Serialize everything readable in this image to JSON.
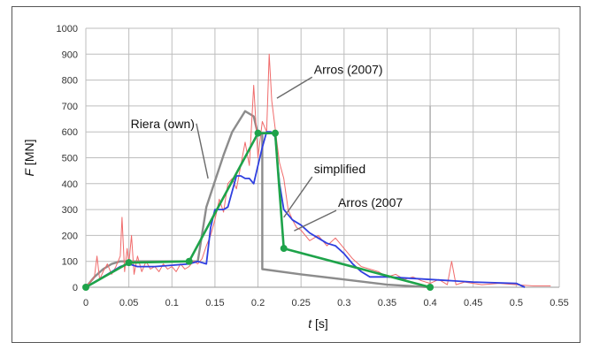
{
  "chart_data": {
    "type": "line",
    "title": "",
    "xlabel": {
      "italic": "t",
      "unit": " [s]"
    },
    "ylabel": {
      "italic": "F",
      "unit": " [MN]"
    },
    "xlim": [
      0,
      0.55
    ],
    "ylim": [
      0,
      1000
    ],
    "grid": true,
    "xticks": [
      "0",
      "0.05",
      "0.1",
      "0.15",
      "0.2",
      "0.25",
      "0.3",
      "0.35",
      "0.4",
      "0.45",
      "0.5",
      "0.55"
    ],
    "yticks": [
      "0",
      "100",
      "200",
      "300",
      "400",
      "500",
      "600",
      "700",
      "800",
      "900",
      "1000"
    ],
    "series": [
      {
        "key": "riera",
        "color": "#8c8c8c",
        "x": [
          0,
          0.01,
          0.02,
          0.03,
          0.04,
          0.05,
          0.07,
          0.09,
          0.11,
          0.13,
          0.14,
          0.15,
          0.16,
          0.17,
          0.185,
          0.195,
          0.2,
          0.205,
          0.205,
          0.25,
          0.3,
          0.35,
          0.4
        ],
        "y": [
          0,
          40,
          70,
          90,
          100,
          100,
          100,
          100,
          100,
          100,
          310,
          410,
          510,
          600,
          680,
          660,
          590,
          590,
          70,
          50,
          30,
          10,
          0
        ]
      },
      {
        "key": "arros-red",
        "color": "#f06b6b",
        "x": [
          0,
          0.005,
          0.01,
          0.013,
          0.016,
          0.02,
          0.025,
          0.03,
          0.035,
          0.04,
          0.042,
          0.045,
          0.048,
          0.05,
          0.053,
          0.056,
          0.06,
          0.065,
          0.07,
          0.075,
          0.08,
          0.085,
          0.09,
          0.095,
          0.1,
          0.105,
          0.11,
          0.115,
          0.12,
          0.125,
          0.13,
          0.135,
          0.14,
          0.145,
          0.15,
          0.155,
          0.16,
          0.165,
          0.17,
          0.175,
          0.18,
          0.185,
          0.19,
          0.195,
          0.2,
          0.205,
          0.21,
          0.213,
          0.216,
          0.219,
          0.222,
          0.225,
          0.23,
          0.235,
          0.24,
          0.245,
          0.25,
          0.26,
          0.27,
          0.28,
          0.29,
          0.3,
          0.31,
          0.32,
          0.33,
          0.34,
          0.35,
          0.36,
          0.37,
          0.38,
          0.39,
          0.4,
          0.41,
          0.42,
          0.425,
          0.43,
          0.44,
          0.46,
          0.48,
          0.5,
          0.52,
          0.54
        ],
        "y": [
          0,
          20,
          40,
          120,
          30,
          60,
          90,
          50,
          80,
          120,
          270,
          60,
          150,
          90,
          200,
          50,
          120,
          60,
          100,
          70,
          80,
          60,
          90,
          70,
          80,
          60,
          90,
          70,
          80,
          100,
          90,
          110,
          160,
          200,
          260,
          340,
          290,
          400,
          420,
          380,
          470,
          560,
          470,
          780,
          500,
          640,
          600,
          900,
          720,
          640,
          560,
          480,
          420,
          300,
          260,
          230,
          220,
          180,
          200,
          160,
          190,
          150,
          110,
          80,
          70,
          60,
          40,
          50,
          30,
          40,
          25,
          15,
          30,
          10,
          100,
          10,
          20,
          10,
          15,
          10,
          5,
          5
        ]
      },
      {
        "key": "arros-blue",
        "color": "#2f3fe0",
        "x": [
          0,
          0.02,
          0.04,
          0.05,
          0.06,
          0.08,
          0.1,
          0.12,
          0.13,
          0.14,
          0.145,
          0.15,
          0.16,
          0.165,
          0.175,
          0.18,
          0.185,
          0.19,
          0.195,
          0.2,
          0.205,
          0.21,
          0.215,
          0.22,
          0.225,
          0.23,
          0.24,
          0.25,
          0.26,
          0.27,
          0.28,
          0.29,
          0.3,
          0.31,
          0.32,
          0.33,
          0.35,
          0.4,
          0.45,
          0.5,
          0.51
        ],
        "y": [
          0,
          40,
          80,
          90,
          80,
          80,
          85,
          90,
          100,
          90,
          230,
          300,
          300,
          310,
          430,
          430,
          420,
          420,
          400,
          470,
          540,
          600,
          600,
          580,
          400,
          300,
          260,
          240,
          210,
          190,
          170,
          160,
          130,
          90,
          60,
          40,
          40,
          30,
          20,
          15,
          0
        ]
      },
      {
        "key": "simplified",
        "color": "#1ea34a",
        "markers": true,
        "x": [
          0,
          0.05,
          0.12,
          0.2,
          0.22,
          0.23,
          0.4
        ],
        "y": [
          0,
          95,
          100,
          595,
          595,
          150,
          0
        ]
      }
    ],
    "vline": {
      "x": 0.4,
      "y0": 0,
      "y1": 700,
      "color": "#b0b0b0"
    },
    "annotations": [
      {
        "text": "Arros (2007)",
        "x": 0.265,
        "y": 825,
        "arrow_x": 0.222,
        "arrow_y": 730
      },
      {
        "text": "Riera (own)",
        "x": 0.052,
        "y": 615,
        "arrow_x": 0.142,
        "arrow_y": 420
      },
      {
        "text": "simplified",
        "x": 0.265,
        "y": 440,
        "arrow_x": 0.23,
        "arrow_y": 270
      },
      {
        "text": "Arros (2007",
        "x": 0.293,
        "y": 310,
        "arrow_x": 0.242,
        "arrow_y": 218
      }
    ]
  }
}
